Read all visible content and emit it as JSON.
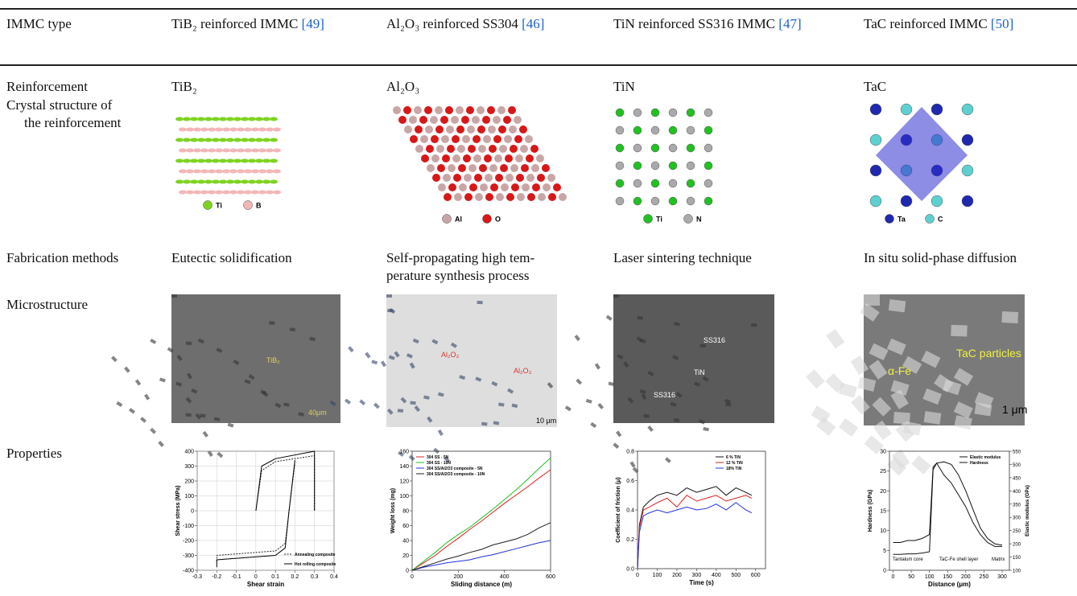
{
  "table": {
    "header": [
      {
        "text": "IMMC type"
      },
      {
        "text": "TiB₂ reinforced IMMC",
        "ref": "[49]"
      },
      {
        "text": "Al₂O₃ reinforced SS304",
        "ref": "[46]"
      },
      {
        "text": "TiN reinforced SS316 IMMC",
        "ref": "[47]"
      },
      {
        "text": "TaC reinforced IMMC",
        "ref": "[50]"
      }
    ],
    "rows": {
      "reinforcement": {
        "label": "Reinforcement",
        "cells": [
          "TiB₂",
          "Al₂O₃",
          "TiN",
          "TaC"
        ]
      },
      "crystal": {
        "label": [
          "Crystal structure of",
          "the reinforcement"
        ],
        "legends": [
          [
            "Ti",
            "B"
          ],
          [
            "Al",
            "O"
          ],
          [
            "Ti",
            "N"
          ],
          [
            "Ta",
            "C"
          ]
        ]
      },
      "fabrication": {
        "label": "Fabrication methods",
        "cells": [
          [
            "Eutectic solidification"
          ],
          [
            "Self-propagating high tem-",
            "perature synthesis process"
          ],
          [
            "Laser sintering technique"
          ],
          [
            "In situ solid-phase diffusion"
          ]
        ]
      },
      "microstructure": {
        "label": "Microstructure",
        "images": [
          {
            "labels": [
              "TiB₂",
              "40μm"
            ]
          },
          {
            "labels": [
              "Al₂O₃",
              "Al₂O₃",
              "10 μm"
            ]
          },
          {
            "labels": [
              "SS316",
              "TiN",
              "SS316"
            ]
          },
          {
            "labels": [
              "TaC particles",
              "α-Fe",
              "1 μm"
            ]
          }
        ]
      },
      "properties": {
        "label": "Properties",
        "charts": [
          {
            "type": "line",
            "xlabel": "Shear strain",
            "ylabel": "Shear stress (MPa)",
            "xlim": [
              -0.3,
              0.4
            ],
            "xticks": [
              -0.3,
              -0.2,
              -0.1,
              0,
              0.1,
              0.2,
              0.3,
              0.4
            ],
            "ylim": [
              -400,
              400
            ],
            "yticks": [
              -400,
              -300,
              -200,
              -100,
              0,
              100,
              200,
              300,
              400
            ],
            "grid": true,
            "legend": "lower right",
            "series": [
              {
                "name": "Annealing composite",
                "color": "#222222",
                "dash": true,
                "x": [
                  0,
                  0.03,
                  0.1,
                  0.3,
                  0.3,
                  null,
                  -0.2,
                  -0.2,
                  0.1,
                  0.15,
                  0.17,
                  0.2
                ],
                "values": [
                  0,
                  270,
                  330,
                  370,
                  0,
                  null,
                  -340,
                  -300,
                  -270,
                  -220,
                  0,
                  320
                ]
              },
              {
                "name": "Hot rolling composite",
                "color": "#000000",
                "x": [
                  0,
                  0.03,
                  0.1,
                  0.3,
                  0.3,
                  null,
                  -0.2,
                  -0.2,
                  0.1,
                  0.15,
                  0.17,
                  0.2
                ],
                "values": [
                  0,
                  300,
                  350,
                  400,
                  0,
                  null,
                  -380,
                  -330,
                  -300,
                  -250,
                  0,
                  340
                ]
              }
            ]
          },
          {
            "type": "line",
            "xlabel": "Sliding distance (m)",
            "ylabel": "Weight loss (mg)",
            "xlim": [
              0,
              600
            ],
            "xticks": [
              0,
              200,
              400,
              600
            ],
            "ylim": [
              0,
              160
            ],
            "yticks": [
              0,
              20,
              40,
              60,
              80,
              100,
              120,
              140,
              160
            ],
            "grid": false,
            "legend": "upper left",
            "series": [
              {
                "name": "304 SS - 5N",
                "color": "#e02020",
                "x": [
                  0,
                  50,
                  100,
                  150,
                  200,
                  250,
                  300,
                  350,
                  400,
                  450,
                  500,
                  550,
                  600
                ],
                "values": [
                  0,
                  10,
                  20,
                  32,
                  43,
                  55,
                  66,
                  78,
                  90,
                  101,
                  112,
                  124,
                  135
                ]
              },
              {
                "name": "304 SS - 10N",
                "color": "#20c020",
                "x": [
                  0,
                  50,
                  100,
                  150,
                  200,
                  250,
                  300,
                  350,
                  400,
                  450,
                  500,
                  550,
                  600
                ],
                "values": [
                  0,
                  12,
                  24,
                  37,
                  48,
                  58,
                  70,
                  82,
                  95,
                  108,
                  122,
                  137,
                  151
                ]
              },
              {
                "name": "304 SS/Al2O3 composite - 5N",
                "color": "#2030e0",
                "x": [
                  0,
                  50,
                  100,
                  150,
                  200,
                  250,
                  300,
                  350,
                  400,
                  450,
                  500,
                  550,
                  600
                ],
                "values": [
                  0,
                  4,
                  7,
                  10,
                  12,
                  14,
                  18,
                  21,
                  25,
                  29,
                  33,
                  37,
                  40
                ]
              },
              {
                "name": "304 SS/Al2O3 composite - 10N",
                "color": "#202020",
                "x": [
                  0,
                  50,
                  100,
                  150,
                  200,
                  250,
                  300,
                  350,
                  400,
                  450,
                  500,
                  550,
                  600
                ],
                "values": [
                  0,
                  5,
                  10,
                  15,
                  19,
                  24,
                  28,
                  34,
                  38,
                  42,
                  48,
                  57,
                  64
                ]
              }
            ]
          },
          {
            "type": "line",
            "xlabel": "Time (s)",
            "ylabel": "Coefficient of friction (μ)",
            "xlim": [
              0,
              650
            ],
            "xticks": [
              0,
              100,
              200,
              300,
              400,
              500,
              600
            ],
            "ylim": [
              0,
              0.8
            ],
            "yticks": [
              {
                "value": 0,
                "label": "0.0"
              },
              0.2,
              0.4,
              0.6,
              0.8
            ],
            "grid": false,
            "legend": "upper right",
            "series": [
              {
                "name": "6 % TiN",
                "color": "#111111",
                "x": [
                  0,
                  10,
                  30,
                  60,
                  100,
                  150,
                  200,
                  250,
                  300,
                  350,
                  400,
                  450,
                  500,
                  550,
                  580
                ],
                "values": [
                  0,
                  0.3,
                  0.42,
                  0.46,
                  0.5,
                  0.52,
                  0.5,
                  0.55,
                  0.52,
                  0.54,
                  0.56,
                  0.5,
                  0.55,
                  0.52,
                  0.5
                ]
              },
              {
                "name": "12 % TiN",
                "color": "#e02020",
                "x": [
                  0,
                  10,
                  30,
                  60,
                  100,
                  150,
                  200,
                  250,
                  300,
                  350,
                  400,
                  450,
                  500,
                  550,
                  580
                ],
                "values": [
                  0,
                  0.28,
                  0.4,
                  0.42,
                  0.45,
                  0.48,
                  0.42,
                  0.5,
                  0.46,
                  0.48,
                  0.5,
                  0.46,
                  0.48,
                  0.5,
                  0.48
                ]
              },
              {
                "name": "18% TiN",
                "color": "#2030e0",
                "x": [
                  0,
                  10,
                  30,
                  60,
                  100,
                  150,
                  200,
                  250,
                  300,
                  350,
                  400,
                  450,
                  500,
                  550,
                  580
                ],
                "values": [
                  0,
                  0.25,
                  0.36,
                  0.38,
                  0.4,
                  0.38,
                  0.4,
                  0.42,
                  0.4,
                  0.41,
                  0.44,
                  0.4,
                  0.45,
                  0.4,
                  0.38
                ]
              }
            ]
          },
          {
            "type": "line",
            "xlabel": "Distance (μm)",
            "ylabel": "Hardness (GPa)",
            "y2label": "Elastic modulus (GPa)",
            "xlim": [
              -10,
              320
            ],
            "xticks": [
              0,
              50,
              100,
              150,
              200,
              250,
              300
            ],
            "ylim": [
              0,
              30
            ],
            "yticks": [
              0,
              5,
              10,
              15,
              20,
              25,
              30
            ],
            "y2lim": [
              100,
              550
            ],
            "y2ticks": [
              100,
              150,
              200,
              250,
              300,
              350,
              400,
              450,
              500,
              550
            ],
            "grid": false,
            "legend": "upper right",
            "annotations": [
              "Tantalum core",
              "TaC-Fe shell layer",
              "Matrix"
            ],
            "series": [
              {
                "name": "Elastic modulus",
                "color": "#111111",
                "axis": "y2",
                "x": [
                  0,
                  20,
                  40,
                  60,
                  80,
                  100,
                  110,
                  120,
                  140,
                  160,
                  180,
                  200,
                  220,
                  240,
                  260,
                  280,
                  300
                ],
                "values": [
                  160,
                  160,
                  162,
                  162,
                  165,
                  170,
                  480,
                  505,
                  510,
                  500,
                  460,
                  400,
                  330,
                  260,
                  220,
                  200,
                  195
                ]
              },
              {
                "name": "Hardness",
                "color": "#111111",
                "x": [
                  0,
                  20,
                  40,
                  60,
                  80,
                  100,
                  110,
                  120,
                  140,
                  160,
                  180,
                  200,
                  220,
                  240,
                  260,
                  280,
                  300
                ],
                "values": [
                  7,
                  7,
                  7.5,
                  7.5,
                  8,
                  9,
                  26,
                  27,
                  24,
                  22,
                  19,
                  16,
                  12,
                  9,
                  7,
                  6,
                  6
                ]
              }
            ]
          }
        ]
      }
    }
  }
}
